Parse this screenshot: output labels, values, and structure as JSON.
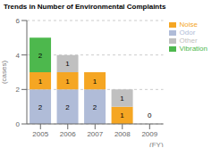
{
  "chart_data": {
    "type": "bar",
    "title": "Trends in Number of Environmental Complaints",
    "x_label": "(FY)",
    "y_label": "(cases)",
    "categories": [
      "2005",
      "2006",
      "2007",
      "2008",
      "2009"
    ],
    "series": [
      {
        "name": "Odor",
        "color": "#b0bcd8",
        "values": [
          2,
          2,
          2,
          0,
          0
        ]
      },
      {
        "name": "Noise",
        "color": "#f5a623",
        "values": [
          1,
          1,
          1,
          1,
          0
        ]
      },
      {
        "name": "Vibration",
        "color": "#4db84d",
        "values": [
          2,
          0,
          0,
          0,
          0
        ]
      },
      {
        "name": "Other",
        "color": "#c0c0c0",
        "values": [
          0,
          1,
          0,
          1,
          0
        ]
      }
    ],
    "stacked": true,
    "data_labels": true,
    "ylim": [
      0,
      6
    ],
    "yticks": [
      0,
      2,
      4,
      6
    ],
    "grid": true,
    "legend": "right",
    "annotations": [
      {
        "text": "0",
        "x": "2009",
        "y": 0.12
      }
    ]
  }
}
